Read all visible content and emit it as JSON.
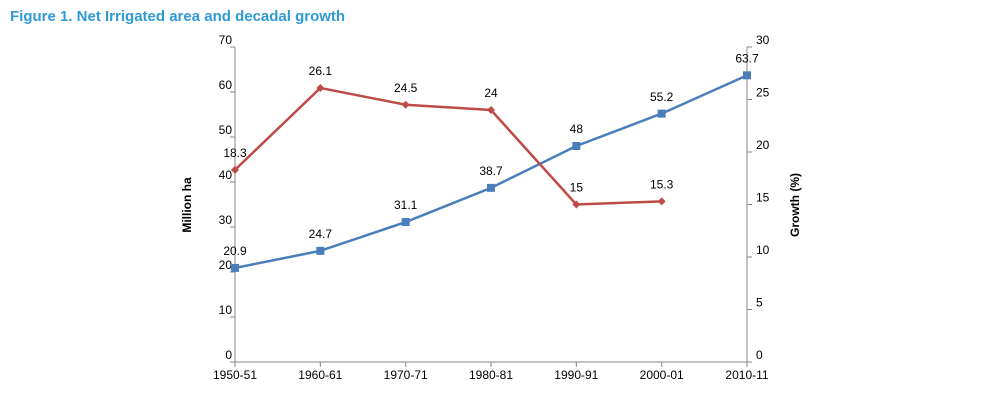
{
  "chart_data": {
    "type": "line",
    "title": "Figure 1. Net Irrigated area and decadal growth",
    "ylabel": "Million ha",
    "y2label": "Growth (%)",
    "categories": [
      "1950-51",
      "1960-61",
      "1970-71",
      "1980-81",
      "1990-91",
      "2000-01",
      "2010-11"
    ],
    "series": [
      {
        "color": "#4a7ebb",
        "marker": "square",
        "values": [
          20.9,
          24.7,
          31.1,
          38.7,
          48,
          55.2,
          63.7
        ]
      },
      {
        "color": "#be4b48",
        "marker": "diamond",
        "axis": "y2",
        "values": [
          18.3,
          26.1,
          24.5,
          24,
          15,
          15.3,
          null
        ]
      }
    ],
    "ylim": [
      0,
      70
    ],
    "yticks": [
      0,
      10,
      20,
      30,
      40,
      50,
      60,
      70
    ],
    "y2lim": [
      0,
      30
    ],
    "y2ticks": [
      0,
      5,
      10,
      15,
      20,
      25,
      30
    ],
    "grid": false
  }
}
